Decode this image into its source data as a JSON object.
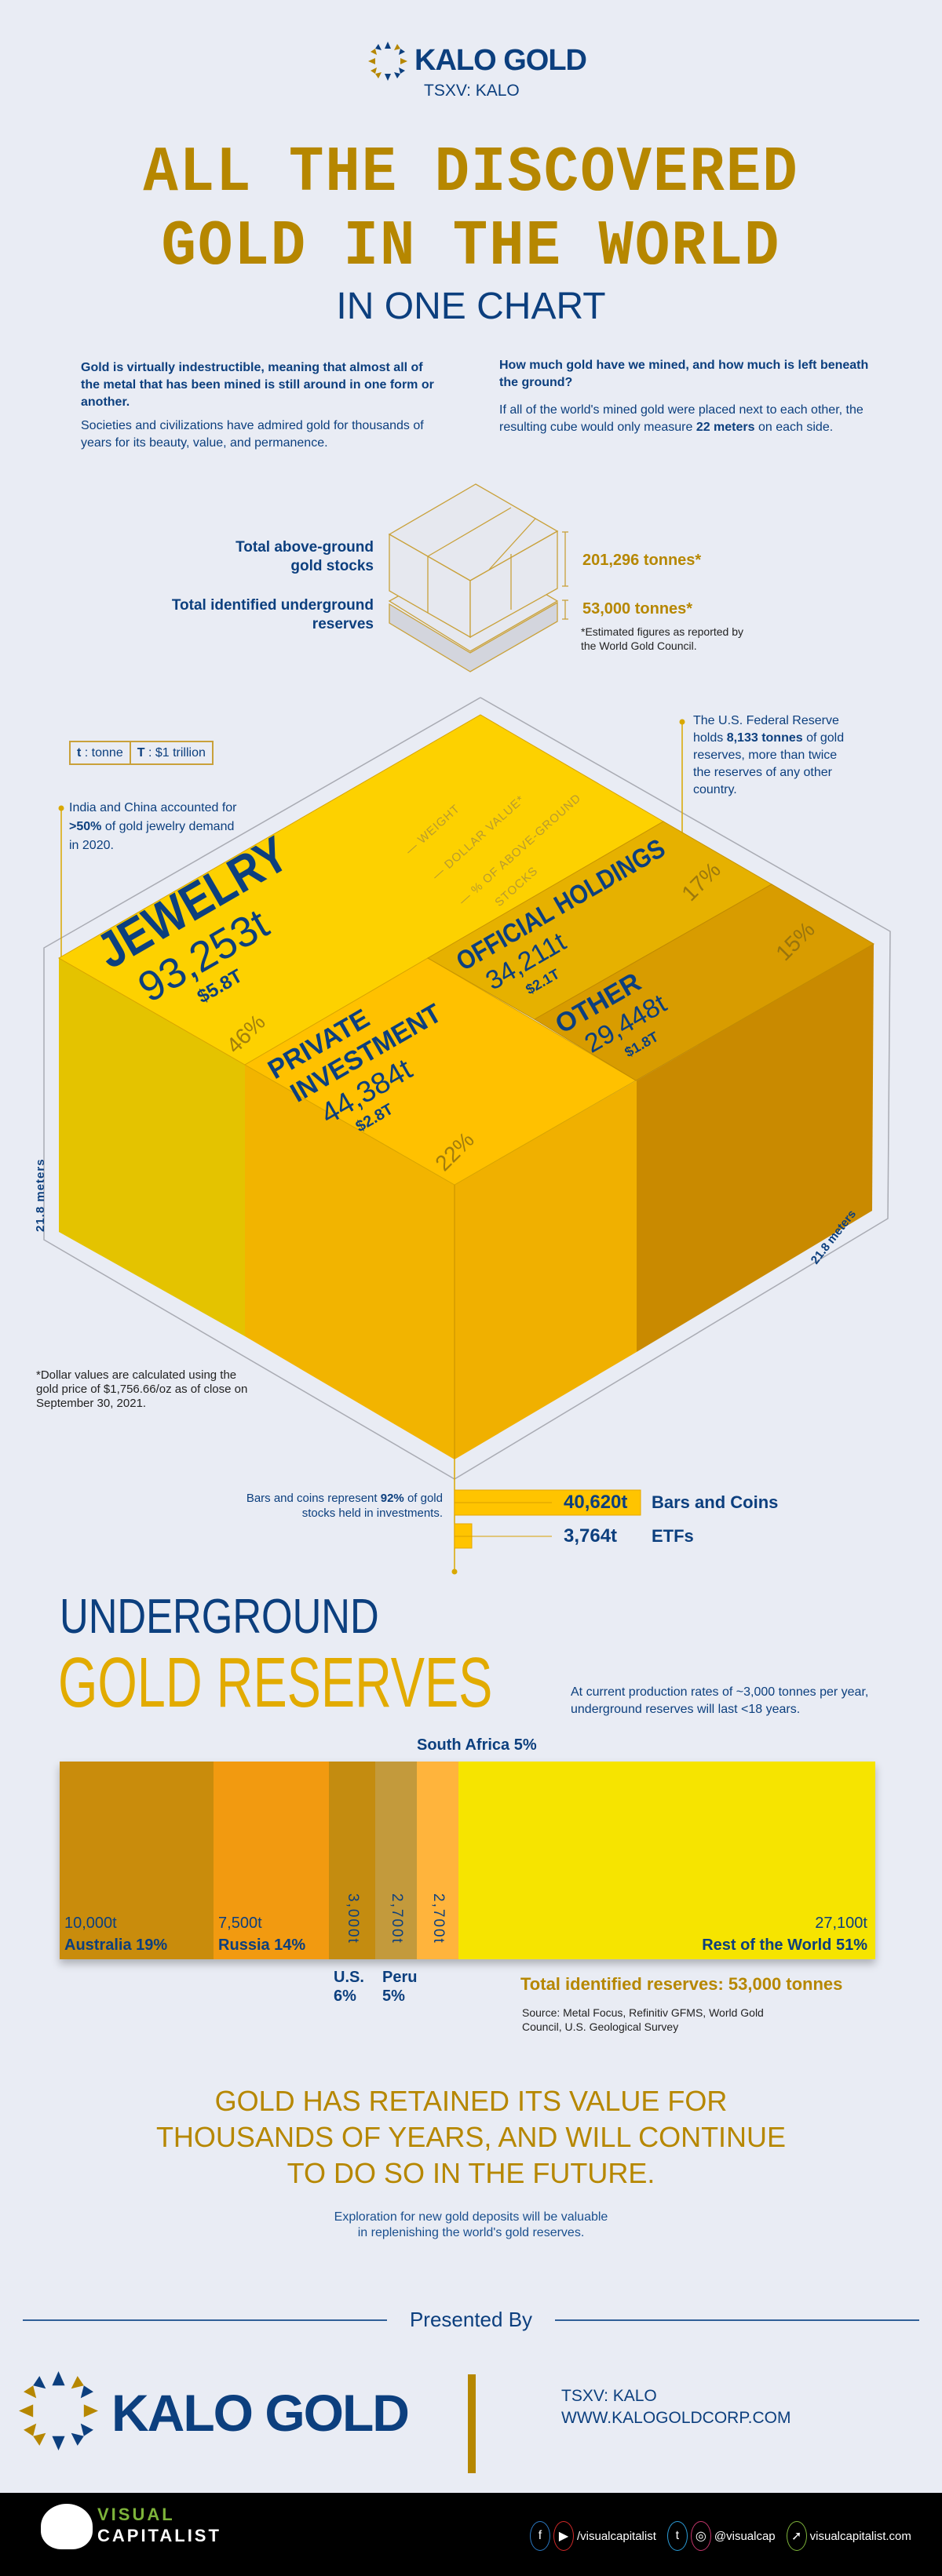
{
  "header": {
    "brand": "KALO GOLD",
    "ticker": "TSXV: KALO"
  },
  "title": {
    "line1": "ALL THE DISCOVERED",
    "line2": "GOLD IN THE WORLD",
    "line3": "IN ONE CHART"
  },
  "intro": {
    "left_bold": "Gold is virtually indestructible, meaning that almost all of the metal that has been mined is still around in one form or another.",
    "left_text": "Societies and civilizations have admired gold for thousands of years for its beauty, value, and permanence.",
    "right_bold": "How much gold have we mined, and how much is left beneath the ground?",
    "right_text_pre": "If all of the world's mined gold were placed next to each other, the resulting cube would only measure ",
    "right_text_bold": "22 meters",
    "right_text_post": " on each side."
  },
  "summary_cube": {
    "above_label": "Total above-ground gold stocks",
    "above_value": "201,296 tonnes*",
    "under_label": "Total identified underground reserves",
    "under_value": "53,000 tonnes*",
    "note": "*Estimated figures as reported by the World Gold Council."
  },
  "legend_box": {
    "t_key": "t",
    "t_val": ": tonne",
    "T_key": "T",
    "T_val": ": $1 trillion"
  },
  "cube_legend": {
    "weight": "— WEIGHT",
    "dollar": "— DOLLAR VALUE*",
    "pct1": "— % OF ABOVE-GROUND",
    "pct2": "STOCKS"
  },
  "callouts": {
    "india_pre": "India and China accounted for ",
    "india_bold": ">50%",
    "india_post": " of gold jewelry demand in 2020.",
    "fed_pre": "The U.S. Federal Reserve holds ",
    "fed_bold": "8,133 tonnes",
    "fed_post": " of gold reserves, more than twice the reserves of any other country."
  },
  "dimension": {
    "left": "21.8 meters",
    "right": "21.8 meters"
  },
  "dollar_note": "*Dollar values are calculated using the gold price of $1,756.66/oz as of close on September 30, 2021.",
  "investment": {
    "note_pre": "Bars and coins represent ",
    "note_bold": "92%",
    "note_post": " of gold stocks held in investments.",
    "items": [
      {
        "value": "40,620t",
        "label": "Bars and Coins",
        "tonnes": 40620
      },
      {
        "value": "3,764t",
        "label": "ETFs",
        "tonnes": 3764
      }
    ]
  },
  "underground": {
    "title1": "UNDERGROUND",
    "title2": "GOLD RESERVES",
    "note": "At current production rates of ~3,000 tonnes per year, underground reserves will last <18 years.",
    "total": "Total identified reserves: 53,000 tonnes",
    "source": "Source: Metal Focus, Refinitiv GFMS, World Gold Council, U.S. Geological Survey"
  },
  "closing": {
    "line1": "GOLD HAS RETAINED ITS VALUE FOR",
    "line2": "THOUSANDS OF YEARS, AND WILL CONTINUE",
    "line3": "TO DO SO IN THE FUTURE.",
    "sub1": "Exploration for new gold deposits will be valuable",
    "sub2": "in replenishing the world's gold reserves."
  },
  "sponsor": {
    "presented_by": "Presented By",
    "brand": "KALO GOLD",
    "ticker": "TSXV: KALO",
    "url": "WWW.KALOGOLDCORP.COM"
  },
  "footer": {
    "vc1": "VISUAL",
    "vc2": "CAPITALIST",
    "handle1": "/visualcapitalist",
    "handle2": "@visualcap",
    "site": "visualcapitalist.com"
  },
  "colors": {
    "navy": "#0c3f7e",
    "gold": "#b68700"
  },
  "chart_data": [
    {
      "type": "treemap-cube",
      "title": "Above-ground gold stocks",
      "categories": [
        "Jewelry",
        "Private Investment",
        "Official Holdings",
        "Other"
      ],
      "series": [
        {
          "name": "Weight (t)",
          "values": [
            93253,
            44384,
            34211,
            29448
          ],
          "labels": [
            "93,253t",
            "44,384t",
            "34,211t",
            "29,448t"
          ]
        },
        {
          "name": "Dollar value ($T)",
          "values": [
            5.8,
            2.8,
            2.1,
            1.8
          ],
          "labels": [
            "$5.8T",
            "$2.8T",
            "$2.1T",
            "$1.8T"
          ]
        },
        {
          "name": "% of above-ground stocks",
          "values": [
            46,
            22,
            17,
            15
          ],
          "labels": [
            "46%",
            "22%",
            "17%",
            "15%"
          ]
        }
      ],
      "display_names": [
        "JEWELRY",
        "PRIVATE",
        "INVESTMENT",
        "OFFICIAL HOLDINGS",
        "OTHER"
      ]
    },
    {
      "type": "bar",
      "title": "Underground gold reserves",
      "items": [
        {
          "name": "Australia",
          "tonnes": 10000,
          "value_label": "10,000t",
          "pct_label": "Australia 19%",
          "color": "#c98c0c"
        },
        {
          "name": "Russia",
          "tonnes": 7500,
          "value_label": "7,500t",
          "pct_label": "Russia 14%",
          "color": "#f29a10"
        },
        {
          "name": "U.S.",
          "tonnes": 3000,
          "value_label": "3,000t",
          "pct_label": "U.S. 6%",
          "below1": "U.S.",
          "below2": "6%",
          "color": "#c48c10"
        },
        {
          "name": "Peru",
          "tonnes": 2700,
          "value_label": "2,700t",
          "pct_label": "Peru 5%",
          "below1": "Peru",
          "below2": "5%",
          "color": "#c39a3c"
        },
        {
          "name": "South Africa",
          "tonnes": 2700,
          "value_label": "2,700t",
          "pct_label": "South Africa 5%",
          "color": "#ffb43c"
        },
        {
          "name": "Rest of the World",
          "tonnes": 27100,
          "value_label": "27,100t",
          "pct_label": "Rest of the World 51%",
          "color": "#f6e400"
        }
      ]
    }
  ]
}
